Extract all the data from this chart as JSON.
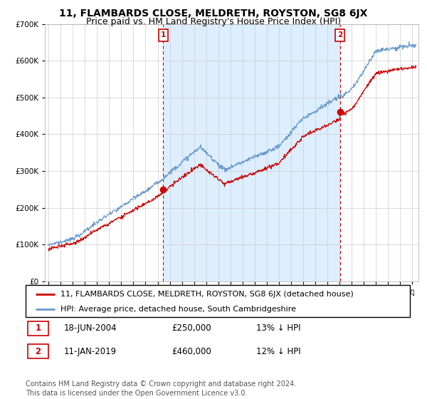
{
  "title": "11, FLAMBARDS CLOSE, MELDRETH, ROYSTON, SG8 6JX",
  "subtitle": "Price paid vs. HM Land Registry's House Price Index (HPI)",
  "ylim": [
    0,
    700000
  ],
  "xlim_start": 1994.7,
  "xlim_end": 2025.5,
  "sale1_date": 2004.46,
  "sale1_price": 250000,
  "sale1_label": "1",
  "sale2_date": 2019.03,
  "sale2_price": 460000,
  "sale2_label": "2",
  "property_color": "#cc0000",
  "hpi_color": "#6699cc",
  "hpi_fill_color": "#ddeeff",
  "legend_property": "11, FLAMBARDS CLOSE, MELDRETH, ROYSTON, SG8 6JX (detached house)",
  "legend_hpi": "HPI: Average price, detached house, South Cambridgeshire",
  "note1_label": "1",
  "note1_date": "18-JUN-2004",
  "note1_price": "£250,000",
  "note1_hpi": "13% ↓ HPI",
  "note2_label": "2",
  "note2_date": "11-JAN-2019",
  "note2_price": "£460,000",
  "note2_hpi": "12% ↓ HPI",
  "footer": "Contains HM Land Registry data © Crown copyright and database right 2024.\nThis data is licensed under the Open Government Licence v3.0.",
  "title_fontsize": 10,
  "subtitle_fontsize": 9,
  "legend_fontsize": 8,
  "note_fontsize": 8.5,
  "footer_fontsize": 7
}
